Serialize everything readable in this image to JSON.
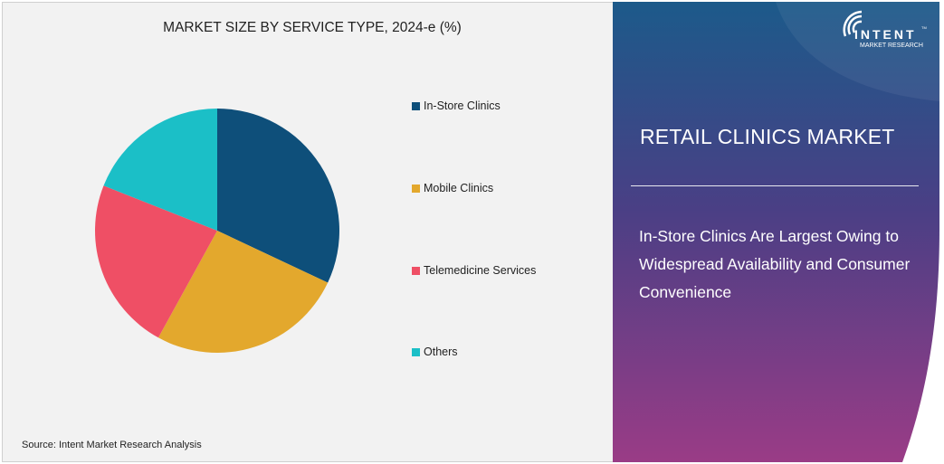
{
  "chart_data": {
    "type": "pie",
    "title": "MARKET SIZE BY SERVICE TYPE, 2024-e (%)",
    "categories": [
      "In-Store Clinics",
      "Mobile Clinics",
      "Telemedicine Services",
      "Others"
    ],
    "values": [
      32,
      26,
      23,
      19
    ],
    "colors": [
      "#0e4f7a",
      "#e3a82d",
      "#ef4f65",
      "#1bbfc7"
    ],
    "legend_position": "right"
  },
  "source": "Source:  Intent Market Research Analysis",
  "panel": {
    "title": "RETAIL CLINICS MARKET",
    "subtitle": "In-Store Clinics Are Largest Owing to Widespread Availability and Consumer Convenience",
    "logo": {
      "name": "INTENT",
      "tagline": "MARKET RESEARCH",
      "tm": "TM"
    }
  }
}
